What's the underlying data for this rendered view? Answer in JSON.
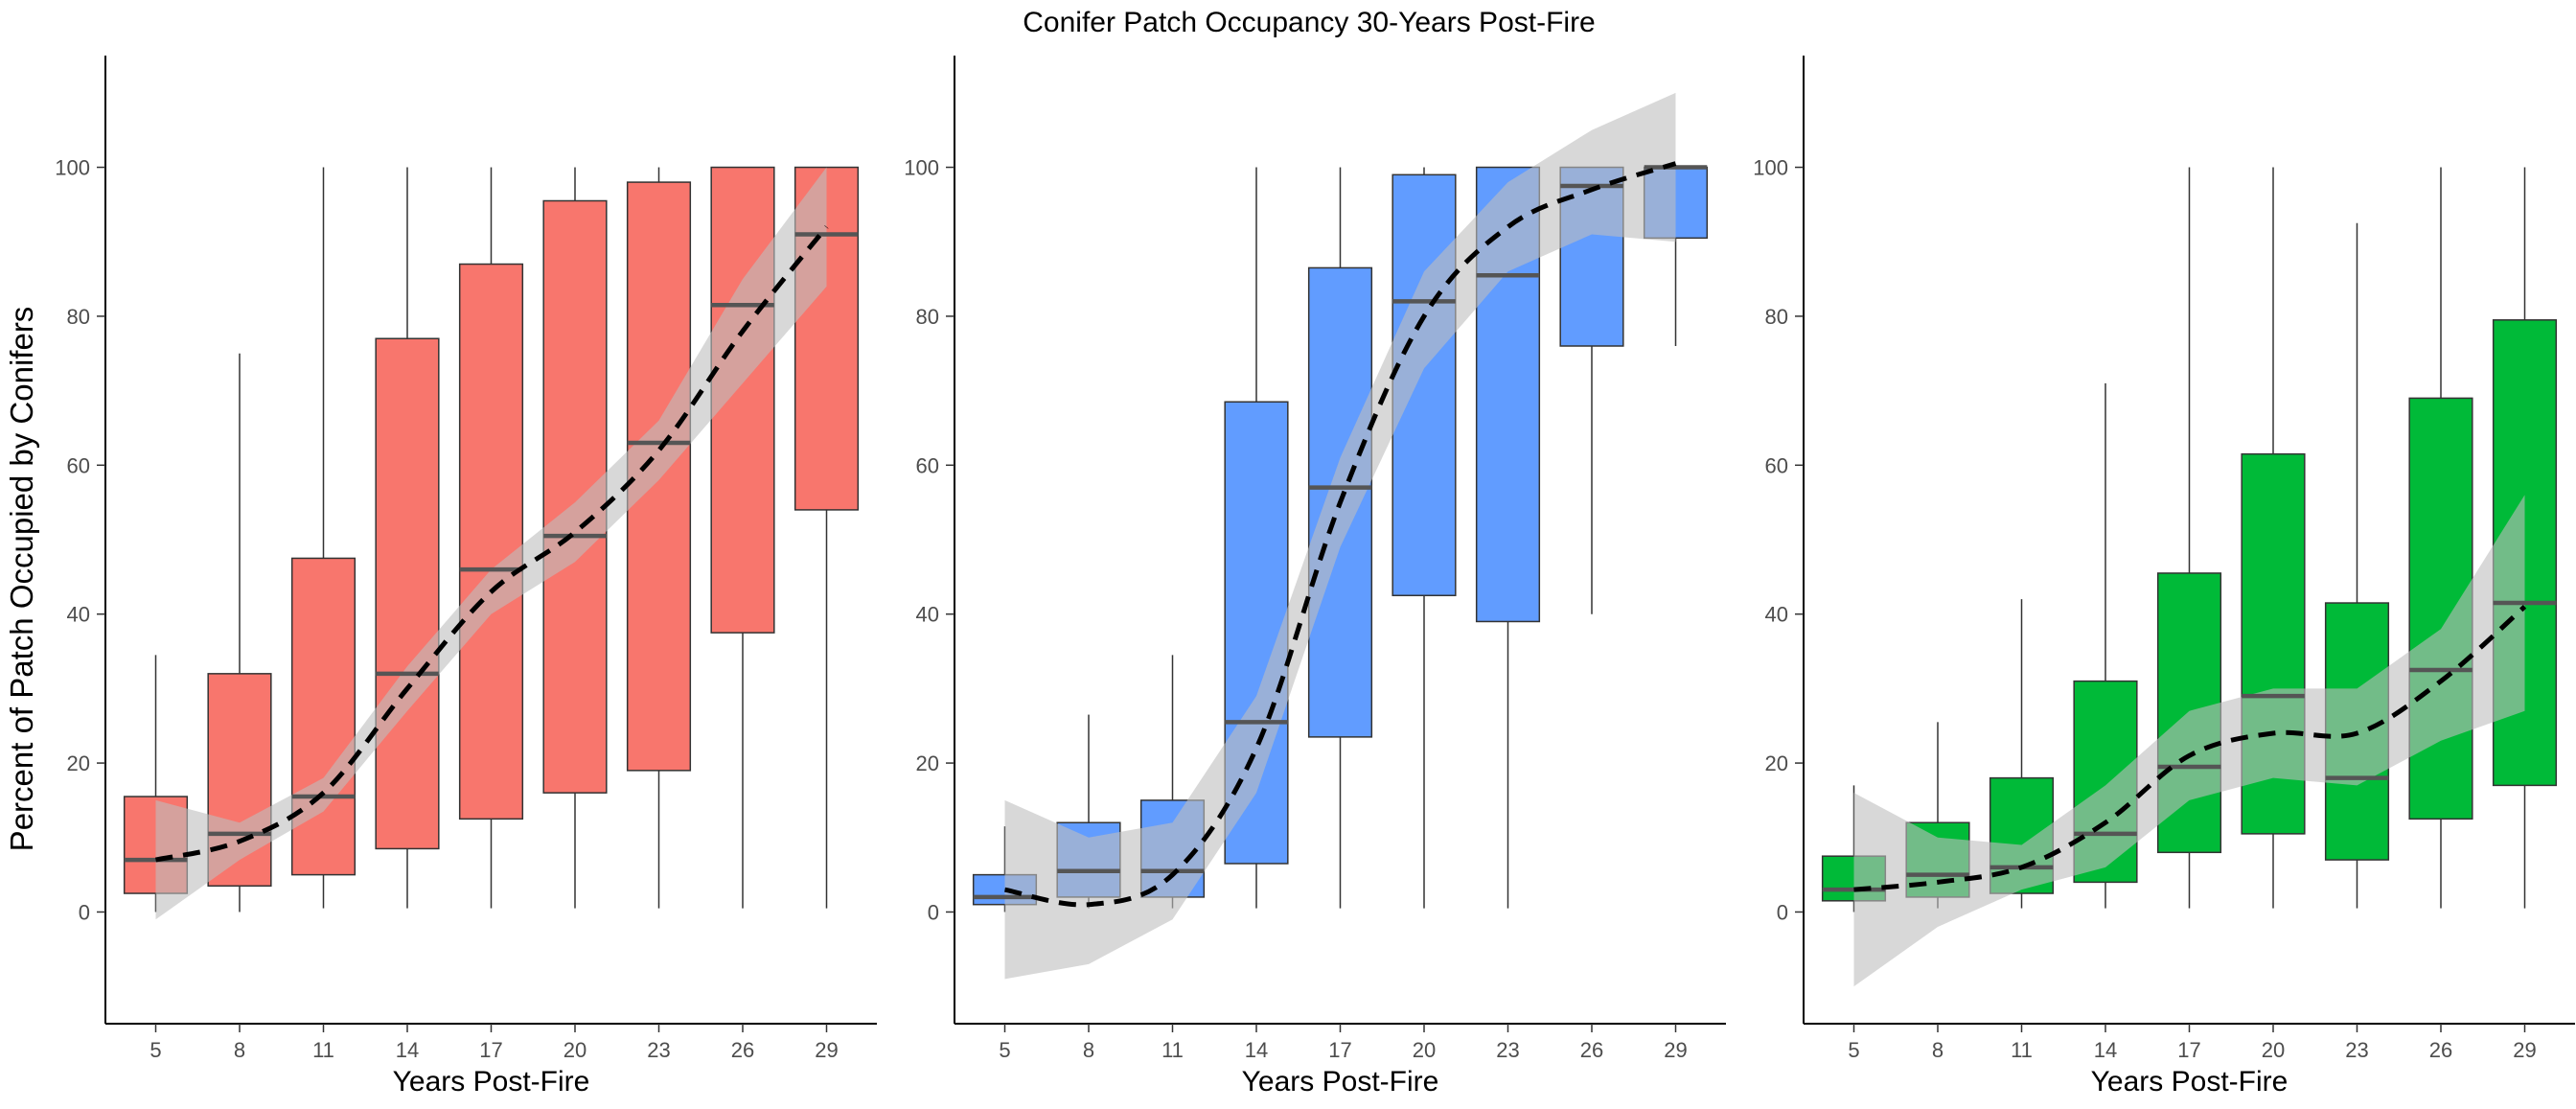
{
  "chart_data": {
    "type": "box",
    "title": "Conifer Patch Occupancy 30-Years Post-Fire",
    "ylabel": "Percent of Patch Occupied by Conifers",
    "xlabel": "Years Post-Fire",
    "categories": [
      "5",
      "8",
      "11",
      "14",
      "17",
      "20",
      "23",
      "26",
      "29"
    ],
    "ylim": [
      -15,
      115
    ],
    "yticks": [
      0,
      20,
      40,
      60,
      80,
      100
    ],
    "grid": false,
    "legend": "none",
    "panels": [
      {
        "color": "#F8766D",
        "boxes": [
          {
            "min": 0,
            "q1": 2.5,
            "median": 7,
            "q3": 15.5,
            "max": 34.5
          },
          {
            "min": 0,
            "q1": 3.5,
            "median": 10.5,
            "q3": 32,
            "max": 75
          },
          {
            "min": 0.5,
            "q1": 5,
            "median": 15.5,
            "q3": 47.5,
            "max": 100
          },
          {
            "min": 0.5,
            "q1": 8.5,
            "median": 32,
            "q3": 77,
            "max": 100
          },
          {
            "min": 0.5,
            "q1": 12.5,
            "median": 46,
            "q3": 87,
            "max": 100
          },
          {
            "min": 0.5,
            "q1": 16,
            "median": 50.5,
            "q3": 95.5,
            "max": 100
          },
          {
            "min": 0.5,
            "q1": 19,
            "median": 63,
            "q3": 98,
            "max": 100
          },
          {
            "min": 0.5,
            "q1": 37.5,
            "median": 81.5,
            "q3": 100,
            "max": 100
          },
          {
            "min": 0.5,
            "q1": 54,
            "median": 91,
            "q3": 100,
            "max": 100
          }
        ],
        "trend": [
          7,
          9.5,
          16,
          30,
          43,
          51,
          62,
          78,
          92
        ],
        "band_lower": [
          -1,
          7,
          13.5,
          27,
          40,
          47,
          58,
          71,
          84
        ],
        "band_upper": [
          15,
          12,
          18,
          33,
          46,
          55,
          66,
          85,
          100
        ]
      },
      {
        "color": "#619CFF",
        "boxes": [
          {
            "min": 0,
            "q1": 1,
            "median": 2,
            "q3": 5,
            "max": 11.5
          },
          {
            "min": 0.5,
            "q1": 2,
            "median": 5.5,
            "q3": 12,
            "max": 26.5
          },
          {
            "min": 0.5,
            "q1": 2,
            "median": 5.5,
            "q3": 15,
            "max": 34.5
          },
          {
            "min": 0.5,
            "q1": 6.5,
            "median": 25.5,
            "q3": 68.5,
            "max": 100
          },
          {
            "min": 0.5,
            "q1": 23.5,
            "median": 57,
            "q3": 86.5,
            "max": 100
          },
          {
            "min": 0.5,
            "q1": 42.5,
            "median": 82,
            "q3": 99,
            "max": 100
          },
          {
            "min": 0.5,
            "q1": 39,
            "median": 85.5,
            "q3": 100,
            "max": 100
          },
          {
            "min": 40,
            "q1": 76,
            "median": 97.5,
            "q3": 100,
            "max": 100
          },
          {
            "min": 76,
            "q1": 90.5,
            "median": 100,
            "q3": 100,
            "max": 100
          }
        ],
        "trend": [
          3,
          1,
          5,
          22,
          55,
          80,
          92,
          97,
          100.5
        ],
        "band_lower": [
          -9,
          -7,
          -1,
          16,
          49,
          73,
          86,
          91,
          90
        ],
        "band_upper": [
          15,
          10,
          12,
          29,
          61,
          86,
          98,
          105,
          110
        ]
      },
      {
        "color": "#00BA38",
        "boxes": [
          {
            "min": 0,
            "q1": 1.5,
            "median": 3,
            "q3": 7.5,
            "max": 17
          },
          {
            "min": 0.5,
            "q1": 2,
            "median": 5,
            "q3": 12,
            "max": 25.5
          },
          {
            "min": 0.5,
            "q1": 2.5,
            "median": 6,
            "q3": 18,
            "max": 42
          },
          {
            "min": 0.5,
            "q1": 4,
            "median": 10.5,
            "q3": 31,
            "max": 71
          },
          {
            "min": 0.5,
            "q1": 8,
            "median": 19.5,
            "q3": 45.5,
            "max": 100
          },
          {
            "min": 0.5,
            "q1": 10.5,
            "median": 29,
            "q3": 61.5,
            "max": 100
          },
          {
            "min": 0.5,
            "q1": 7,
            "median": 18,
            "q3": 41.5,
            "max": 92.5
          },
          {
            "min": 0.5,
            "q1": 12.5,
            "median": 32.5,
            "q3": 69,
            "max": 100
          },
          {
            "min": 0.5,
            "q1": 17,
            "median": 41.5,
            "q3": 79.5,
            "max": 100
          }
        ],
        "trend": [
          3,
          4,
          6,
          12,
          21,
          24,
          24,
          31,
          41
        ],
        "band_lower": [
          -10,
          -2,
          3,
          6,
          15,
          18,
          17,
          23,
          27
        ],
        "band_upper": [
          16,
          10,
          9,
          17,
          27,
          30,
          30,
          38,
          56
        ]
      }
    ]
  }
}
